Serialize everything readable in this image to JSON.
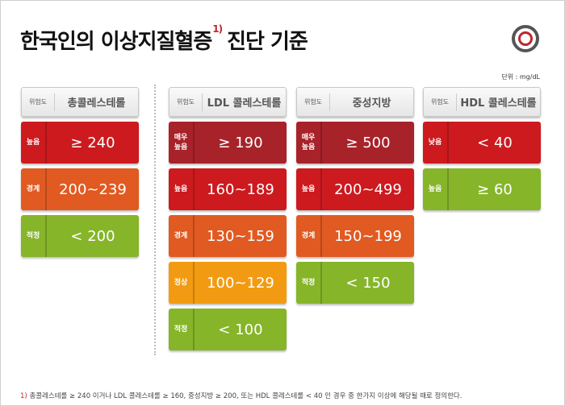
{
  "title": {
    "text": "한국인의 이상지질혈증",
    "sup": "1)",
    "rest": "진단 기준"
  },
  "unit": "단위 : mg/dL",
  "colors": {
    "very_high": "#a8222a",
    "high": "#cc1a1f",
    "borderline": "#e05a22",
    "normal": "#f29b12",
    "optimal": "#86b52a"
  },
  "columns": [
    {
      "level_label": "위험도",
      "name": "총콜레스테롤",
      "rows": [
        {
          "label": "높음",
          "value": "≥ 240",
          "tier": "high"
        },
        {
          "label": "경계",
          "value": "200~239",
          "tier": "borderline"
        },
        {
          "label": "적정",
          "value": "< 200",
          "tier": "optimal"
        }
      ]
    },
    {
      "level_label": "위험도",
      "name": "LDL 콜레스테롤",
      "rows": [
        {
          "label": "매우 높음",
          "value": "≥ 190",
          "tier": "very_high"
        },
        {
          "label": "높음",
          "value": "160~189",
          "tier": "high"
        },
        {
          "label": "경계",
          "value": "130~159",
          "tier": "borderline"
        },
        {
          "label": "정상",
          "value": "100~129",
          "tier": "normal"
        },
        {
          "label": "적정",
          "value": "< 100",
          "tier": "optimal"
        }
      ]
    },
    {
      "level_label": "위험도",
      "name": "중성지방",
      "rows": [
        {
          "label": "매우 높음",
          "value": "≥ 500",
          "tier": "very_high"
        },
        {
          "label": "높음",
          "value": "200~499",
          "tier": "high"
        },
        {
          "label": "경계",
          "value": "150~199",
          "tier": "borderline"
        },
        {
          "label": "적정",
          "value": "< 150",
          "tier": "optimal"
        }
      ]
    },
    {
      "level_label": "위험도",
      "name": "HDL 콜레스테롤",
      "rows": [
        {
          "label": "낮음",
          "value": "< 40",
          "tier": "high"
        },
        {
          "label": "높음",
          "value": "≥ 60",
          "tier": "optimal"
        }
      ]
    }
  ],
  "footnote": {
    "mark": "1)",
    "text": "총콜레스테롤  ≥ 240 이거나 LDL 콜레스테롤 ≥ 160, 중성지방 ≥ 200, 또는 HDL 콜레스테롤 < 40 인 경우 중 한가지 이상에 해당될 때로 정의한다."
  }
}
